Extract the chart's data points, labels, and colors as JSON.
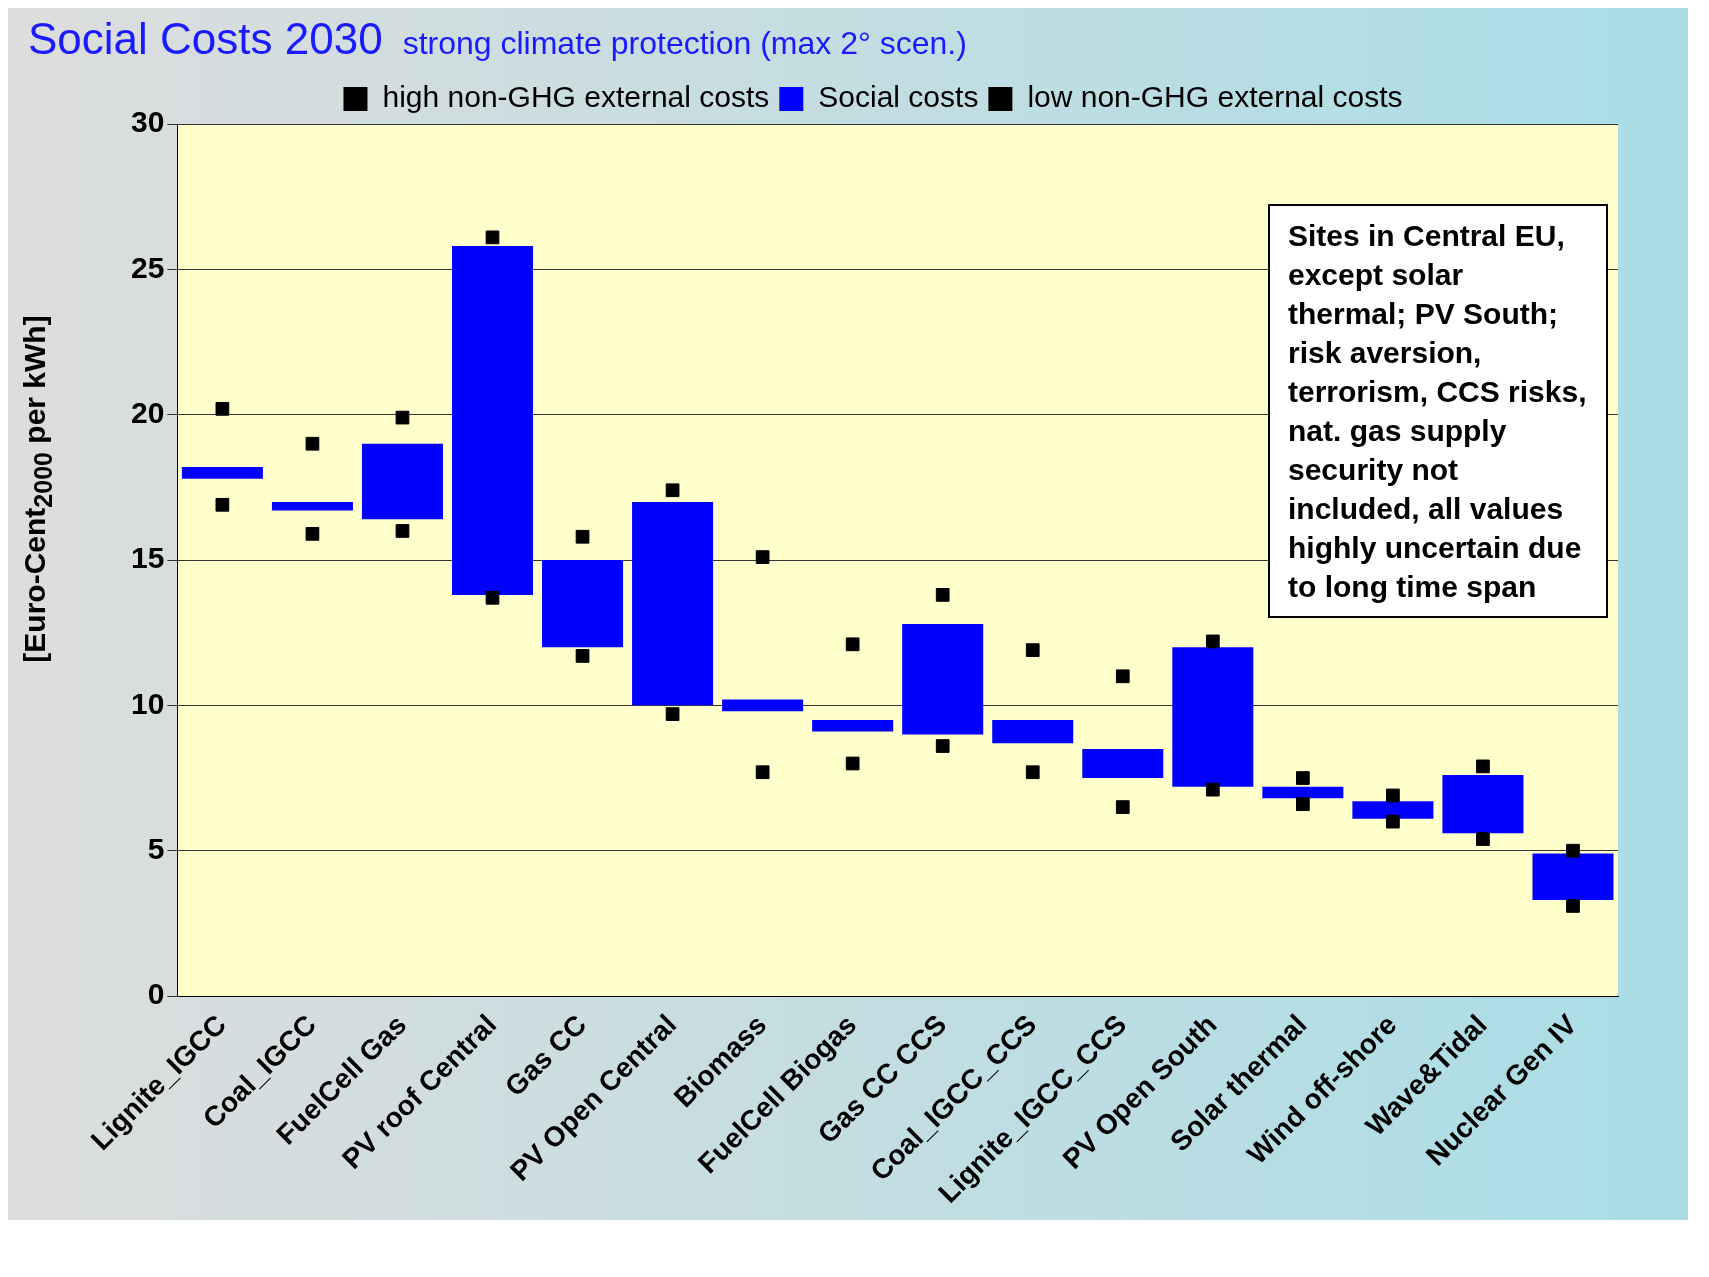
{
  "chart_data": {
    "type": "bar",
    "title": "Social Costs 2030",
    "subtitle": "strong climate protection (max 2° scen.)",
    "ylabel": "[Euro-Cent$_{2000}$ per kWh]",
    "categories": [
      "Lignite_IGCC",
      "Coal_IGCC",
      "FuelCell Gas",
      "PV roof Central",
      "Gas CC",
      "PV Open Central",
      "Biomass",
      "FuelCell Biogas",
      "Gas CC CCS",
      "Coal_IGCC_CCS",
      "Lignite_IGCC_CCS",
      "PV Open South",
      "Solar thermal",
      "Wind off-shore",
      "Wave&Tidal",
      "Nuclear Gen IV"
    ],
    "series": [
      {
        "name": "high non-GHG external costs",
        "type": "scatter",
        "color": "#000000",
        "values": [
          20.2,
          19.0,
          19.9,
          26.1,
          15.8,
          17.4,
          15.1,
          12.1,
          13.8,
          11.9,
          11.0,
          12.2,
          7.5,
          6.9,
          7.9,
          5.0
        ]
      },
      {
        "name": "Social costs",
        "color": "#0000ff",
        "base": [
          17.8,
          16.7,
          16.4,
          13.8,
          12.0,
          10.0,
          9.8,
          9.1,
          9.0,
          8.7,
          7.5,
          7.2,
          6.8,
          6.1,
          5.6,
          3.3
        ],
        "values": [
          0.4,
          0.3,
          2.6,
          12.0,
          3.0,
          7.0,
          0.4,
          0.4,
          3.8,
          0.8,
          1.0,
          4.8,
          0.4,
          0.6,
          2.0,
          1.6
        ]
      },
      {
        "name": "low non-GHG external costs",
        "type": "scatter",
        "color": "#000000",
        "values": [
          16.9,
          15.9,
          16.0,
          13.7,
          11.7,
          9.7,
          7.7,
          8.0,
          8.6,
          7.7,
          6.5,
          7.1,
          6.6,
          6.0,
          5.4,
          3.1
        ]
      }
    ],
    "ylim": [
      0,
      30
    ],
    "yticks": [
      0,
      5,
      10,
      15,
      20,
      25,
      30
    ],
    "grid": "y",
    "legend": "top",
    "marker": "square",
    "annotations": [
      "Sites in Central EU, except solar thermal; PV South; risk aversion, terrorism, CCS risks, nat. gas supply security not included, all values highly uncertain due to long time span"
    ]
  }
}
